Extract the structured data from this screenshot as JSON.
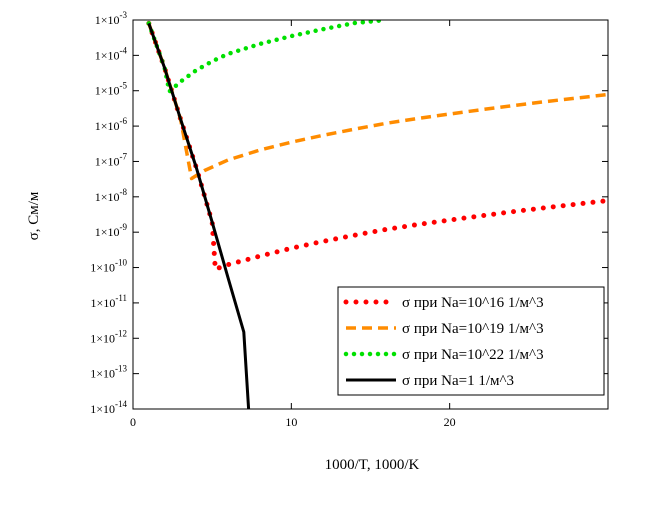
{
  "chart_data": {
    "type": "line",
    "xlabel": "1000/T, 1000/K",
    "ylabel": "σ, См/м",
    "xlim": [
      0,
      30
    ],
    "ylim_log10": [
      -14,
      -3
    ],
    "y_scale": "log",
    "grid": false,
    "legend_position": "bottom-right",
    "x_ticks": [
      {
        "value": 0,
        "label": "0"
      },
      {
        "value": 10,
        "label": "10"
      },
      {
        "value": 20,
        "label": "20"
      }
    ],
    "y_ticks": [
      {
        "exp": -3,
        "label": "1×10",
        "sup": "-3"
      },
      {
        "exp": -4,
        "label": "1×10",
        "sup": "-4"
      },
      {
        "exp": -5,
        "label": "1×10",
        "sup": "-5"
      },
      {
        "exp": -6,
        "label": "1×10",
        "sup": "-6"
      },
      {
        "exp": -7,
        "label": "1×10",
        "sup": "-7"
      },
      {
        "exp": -8,
        "label": "1×10",
        "sup": "-8"
      },
      {
        "exp": -9,
        "label": "1×10",
        "sup": "-9"
      },
      {
        "exp": -10,
        "label": "1×10",
        "sup": "-10"
      },
      {
        "exp": -11,
        "label": "1×10",
        "sup": "-11"
      },
      {
        "exp": -12,
        "label": "1×10",
        "sup": "-12"
      },
      {
        "exp": -13,
        "label": "1×10",
        "sup": "-13"
      },
      {
        "exp": -14,
        "label": "1×10",
        "sup": "-14"
      }
    ],
    "series": [
      {
        "name": "σ при Na=10^16 1/м^3",
        "color": "#ff0000",
        "style": "dots",
        "points": [
          [
            1.0,
            0.0008
          ],
          [
            2.0,
            4.3e-05
          ],
          [
            3.0,
            1.6e-06
          ],
          [
            4.0,
            6.7e-08
          ],
          [
            5.0,
            1.9e-09
          ],
          [
            5.2,
            9e-11
          ],
          [
            6,
            1.2e-10
          ],
          [
            8,
            2.1e-10
          ],
          [
            10,
            3.5e-10
          ],
          [
            12,
            5.5e-10
          ],
          [
            14,
            8.2e-10
          ],
          [
            16,
            1.2e-09
          ],
          [
            18,
            1.65e-09
          ],
          [
            20,
            2.2e-09
          ],
          [
            22,
            2.9e-09
          ],
          [
            24,
            3.8e-09
          ],
          [
            26,
            4.9e-09
          ],
          [
            28,
            6.2e-09
          ],
          [
            30,
            7.8e-09
          ]
        ]
      },
      {
        "name": "σ при Na=10^19 1/м^3",
        "color": "#ff8c00",
        "style": "dashed",
        "points": [
          [
            1.0,
            0.0008
          ],
          [
            2.0,
            4.3e-05
          ],
          [
            3.0,
            1.6e-06
          ],
          [
            3.7,
            3.3e-08
          ],
          [
            4.5,
            5.5e-08
          ],
          [
            6,
            1.1e-07
          ],
          [
            8,
            2.1e-07
          ],
          [
            10,
            3.5e-07
          ],
          [
            12,
            5.5e-07
          ],
          [
            14,
            8.2e-07
          ],
          [
            16,
            1.2e-06
          ],
          [
            18,
            1.65e-06
          ],
          [
            20,
            2.2e-06
          ],
          [
            22,
            2.9e-06
          ],
          [
            24,
            3.8e-06
          ],
          [
            26,
            4.9e-06
          ],
          [
            28,
            6.2e-06
          ],
          [
            30,
            7.8e-06
          ]
        ]
      },
      {
        "name": "σ при Na=10^22 1/м^3",
        "color": "#00e000",
        "style": "dotted",
        "points": [
          [
            1.0,
            0.0008
          ],
          [
            2.0,
            4.3e-05
          ],
          [
            2.3,
            9.5e-06
          ],
          [
            3,
            1.8e-05
          ],
          [
            4,
            3.8e-05
          ],
          [
            5,
            6.8e-05
          ],
          [
            6,
            0.00011
          ],
          [
            8,
            0.00021
          ],
          [
            10,
            0.00035
          ],
          [
            12,
            0.00055
          ],
          [
            14,
            0.00082
          ],
          [
            16,
            0.001
          ]
        ]
      },
      {
        "name": "σ при Na=1 1/м^3",
        "color": "#000000",
        "style": "solid",
        "points": [
          [
            1.0,
            0.0008
          ],
          [
            2.0,
            4.3e-05
          ],
          [
            3.0,
            1.6e-06
          ],
          [
            4.0,
            6.7e-08
          ],
          [
            5.0,
            1.9e-09
          ],
          [
            6.0,
            5.2e-11
          ],
          [
            7.0,
            1.5e-12
          ],
          [
            7.3,
            1e-14
          ]
        ]
      }
    ]
  }
}
